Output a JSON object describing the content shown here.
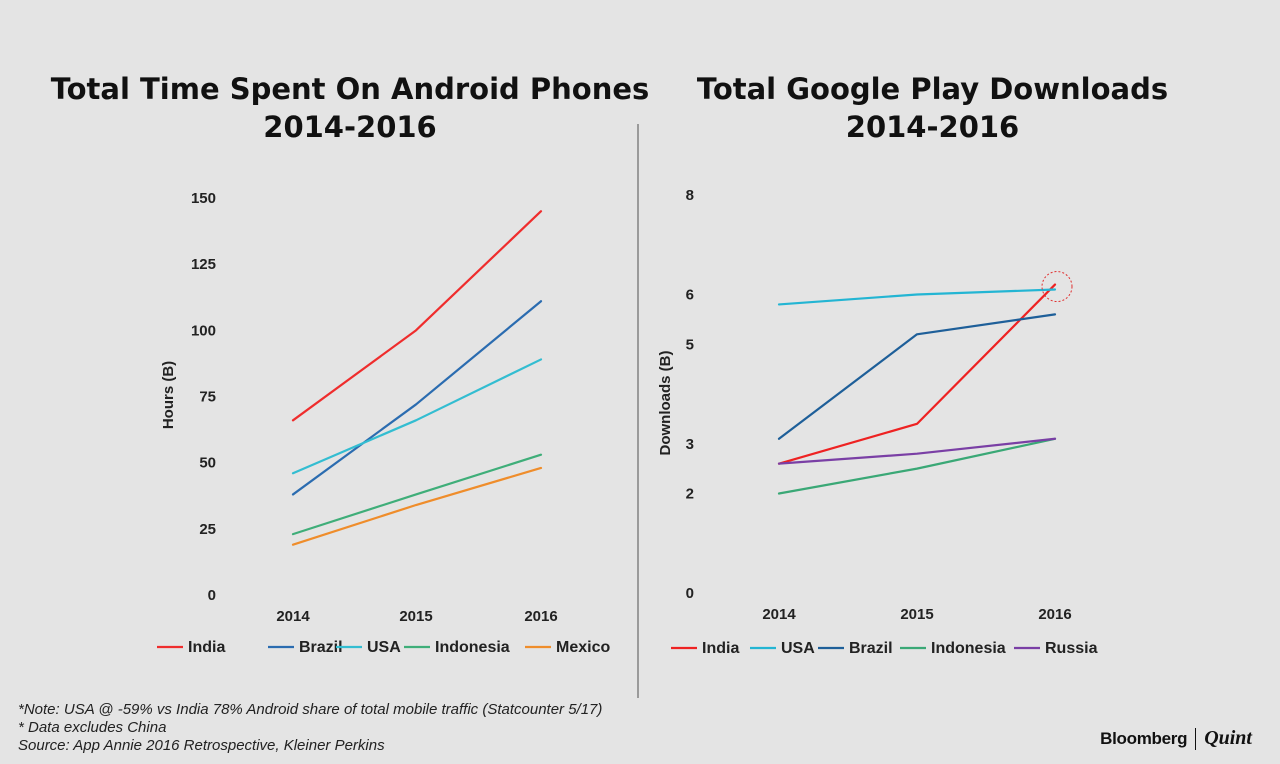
{
  "chart_data": [
    {
      "type": "line",
      "title": [
        "Total Time Spent On Android Phones",
        "2014-2016"
      ],
      "xlabel": "",
      "ylabel": "Hours (B)",
      "categories": [
        "2014",
        "2015",
        "2016"
      ],
      "yticks": [
        "0",
        "25",
        "50",
        "75",
        "100",
        "125",
        "150"
      ],
      "ylim": [
        0,
        150
      ],
      "legend_position": "bottom",
      "series": [
        {
          "name": "India",
          "color": "#ef2d2d",
          "values": [
            66,
            100,
            145
          ]
        },
        {
          "name": "Brazil",
          "color": "#2b6cb0",
          "values": [
            38,
            72,
            111
          ]
        },
        {
          "name": "USA",
          "color": "#33bdd1",
          "values": [
            46,
            66,
            89
          ]
        },
        {
          "name": "Indonesia",
          "color": "#3fae79",
          "values": [
            23,
            38,
            53
          ]
        },
        {
          "name": "Mexico",
          "color": "#ef8d2b",
          "values": [
            19,
            34,
            48
          ]
        }
      ]
    },
    {
      "type": "line",
      "title": [
        "Total Google Play Downloads",
        "2014-2016"
      ],
      "xlabel": "",
      "ylabel": "Downloads (B)",
      "categories": [
        "2014",
        "2015",
        "2016"
      ],
      "yticks": [
        "0",
        "2",
        "3",
        "5",
        "6",
        "8"
      ],
      "ylim": [
        0,
        8
      ],
      "legend_position": "bottom",
      "highlight": {
        "series": "India",
        "category": "2016"
      },
      "series": [
        {
          "name": "India",
          "color": "#ee2222",
          "values": [
            2.6,
            3.4,
            6.2
          ]
        },
        {
          "name": "USA",
          "color": "#23b5d3",
          "values": [
            5.8,
            6.0,
            6.1
          ]
        },
        {
          "name": "Brazil",
          "color": "#1e5f99",
          "values": [
            3.1,
            5.2,
            5.6
          ]
        },
        {
          "name": "Indonesia",
          "color": "#3aa876",
          "values": [
            2.0,
            2.5,
            3.1
          ]
        },
        {
          "name": "Russia",
          "color": "#7a3fa5",
          "values": [
            2.6,
            2.8,
            3.1
          ]
        }
      ]
    }
  ],
  "footnotes": [
    "*Note: USA @ -59% vs India 78% Android share of total mobile traffic (Statcounter 5/17)",
    "* Data excludes China",
    "Source: App Annie 2016 Retrospective, Kleiner Perkins"
  ],
  "brand": {
    "primary": "Bloomberg",
    "secondary": "Quint"
  }
}
